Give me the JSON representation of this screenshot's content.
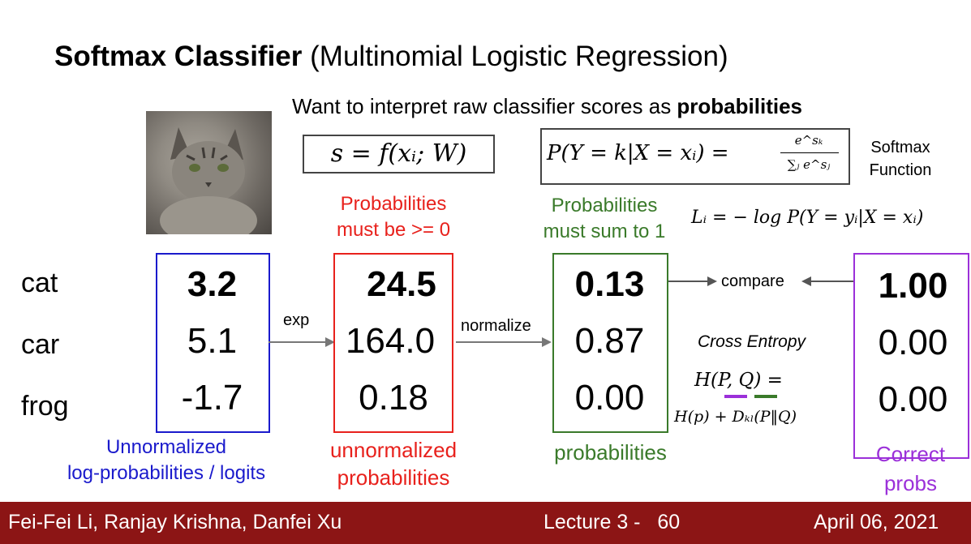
{
  "title": {
    "bold": "Softmax Classifier",
    "rest": " (Multinomial Logistic Regression)"
  },
  "subtitle": {
    "prefix": "Want to interpret raw classifier scores as ",
    "bold": "probabilities"
  },
  "score_formula": "s = f(xᵢ; W)",
  "softmax": {
    "lhs": "P(Y = k|X = xᵢ) =",
    "numerator": "e^sₖ",
    "denominator": "∑ⱼ e^sⱼ",
    "label_line1": "Softmax",
    "label_line2": "Function"
  },
  "loss_formula": "Lᵢ = − log P(Y = yᵢ|X = xᵢ)",
  "row_labels": [
    "cat",
    "car",
    "frog"
  ],
  "columns": {
    "logits": {
      "values": [
        "3.2",
        "5.1",
        "-1.7"
      ],
      "label_line1": "Unnormalized",
      "label_line2": "log-probabilities / logits",
      "color": "#1a1acc"
    },
    "unnormalized": {
      "values": [
        "24.5",
        "164.0",
        "0.18"
      ],
      "label_line1": "unnormalized",
      "label_line2": "probabilities",
      "note_line1": "Probabilities",
      "note_line2": "must be >= 0",
      "color": "#e8211c"
    },
    "probabilities": {
      "values": [
        "0.13",
        "0.87",
        "0.00"
      ],
      "label": "probabilities",
      "note_line1": "Probabilities",
      "note_line2": "must sum to 1",
      "color": "#3a7a2a"
    },
    "correct": {
      "values": [
        "1.00",
        "0.00",
        "0.00"
      ],
      "label_line1": "Correct",
      "label_line2": "probs",
      "color": "#9b30d9"
    }
  },
  "arrows": {
    "exp": "exp",
    "normalize": "normalize",
    "compare": "compare"
  },
  "cross_entropy": {
    "label": "Cross Entropy",
    "line1": "H(P, Q) =",
    "line2": "H(p) + Dₖₗ(P‖Q)"
  },
  "footer": {
    "authors": "Fei-Fei Li, Ranjay Krishna, Danfei Xu",
    "lecture": "Lecture 3 -   60",
    "date": "April 06, 2021"
  }
}
